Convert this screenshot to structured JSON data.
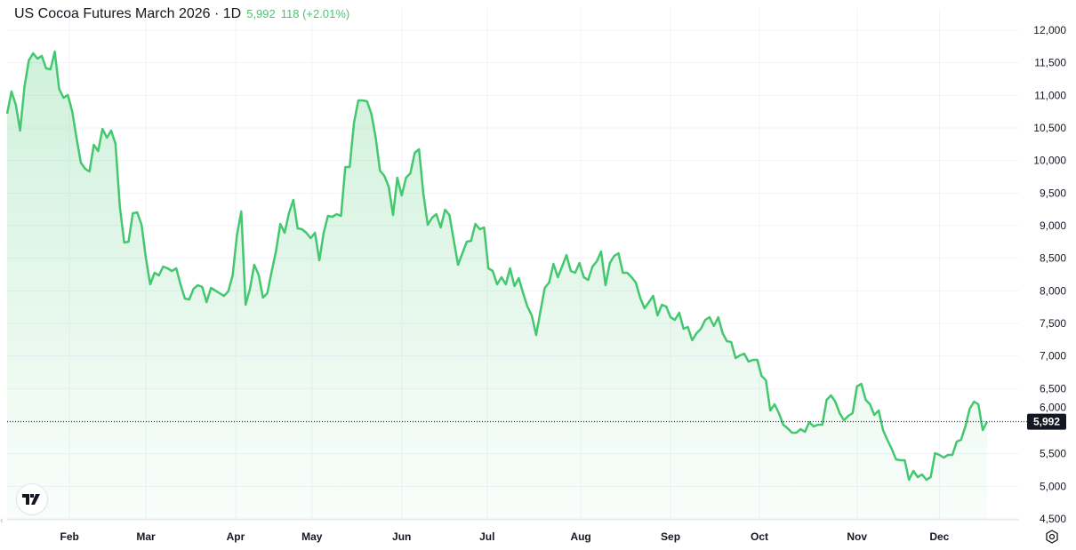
{
  "header": {
    "title": "US Cocoa Futures March 2026 · 1D",
    "last_price": "5,992",
    "change": "118 (+2.01%)"
  },
  "colors": {
    "line": "#43c86f",
    "price_label_bg": "#131722",
    "grid": "#f0f3fa"
  },
  "icons": {
    "logo": "tradingview-logo-icon",
    "settings": "settings-gear-icon",
    "scroll_back": "chevron-left-icon"
  },
  "chart_data": {
    "type": "area",
    "title": "US Cocoa Futures March 2026 · 1D",
    "xlabel": "",
    "ylabel": "",
    "ylim": [
      4500,
      12000
    ],
    "grid": true,
    "last_value": 5992,
    "last_value_label": "5,992",
    "y_ticks": [
      {
        "value": 12000,
        "label": "12,000"
      },
      {
        "value": 11500,
        "label": "11,500"
      },
      {
        "value": 11000,
        "label": "11,000"
      },
      {
        "value": 10500,
        "label": "10,500"
      },
      {
        "value": 10000,
        "label": "10,000"
      },
      {
        "value": 9500,
        "label": "9,500"
      },
      {
        "value": 9000,
        "label": "9,000"
      },
      {
        "value": 8500,
        "label": "8,500"
      },
      {
        "value": 8000,
        "label": "8,000"
      },
      {
        "value": 7500,
        "label": "7,500"
      },
      {
        "value": 7000,
        "label": "7,000"
      },
      {
        "value": 6500,
        "label": "6,500"
      },
      {
        "value": 6000,
        "label": "6,000"
      },
      {
        "value": 5500,
        "label": "5,500"
      },
      {
        "value": 5000,
        "label": "5,000"
      },
      {
        "value": 4500,
        "label": "4,500"
      }
    ],
    "x_ticks": [
      {
        "index": 14.4,
        "label": "Feb"
      },
      {
        "index": 32,
        "label": "Mar"
      },
      {
        "index": 52.7,
        "label": "Apr"
      },
      {
        "index": 70.3,
        "label": "May"
      },
      {
        "index": 91,
        "label": "Jun"
      },
      {
        "index": 110.7,
        "label": "Jul"
      },
      {
        "index": 132.3,
        "label": "Aug"
      },
      {
        "index": 153,
        "label": "Sep"
      },
      {
        "index": 173.5,
        "label": "Oct"
      },
      {
        "index": 196,
        "label": "Nov"
      },
      {
        "index": 215,
        "label": "Dec"
      }
    ],
    "values": [
      10718,
      11059,
      10855,
      10459,
      11127,
      11536,
      11645,
      11563,
      11604,
      11414,
      11400,
      11673,
      11100,
      10964,
      11005,
      10759,
      10350,
      9968,
      9873,
      9832,
      10241,
      10145,
      10486,
      10350,
      10459,
      10254,
      9286,
      8741,
      8755,
      9191,
      9205,
      9014,
      8509,
      8100,
      8277,
      8236,
      8373,
      8345,
      8304,
      8345,
      8100,
      7882,
      7868,
      8032,
      8086,
      8059,
      7827,
      8045,
      8004,
      7964,
      7923,
      7991,
      8236,
      8850,
      9218,
      7786,
      8032,
      8400,
      8250,
      7896,
      7964,
      8291,
      8605,
      9027,
      8891,
      9191,
      9395,
      8959,
      8946,
      8891,
      8809,
      8891,
      8468,
      8891,
      9150,
      9136,
      9177,
      9150,
      9900,
      9900,
      10582,
      10923,
      10923,
      10909,
      10718,
      10350,
      9845,
      9764,
      9600,
      9163,
      9736,
      9464,
      9736,
      9805,
      10118,
      10173,
      9491,
      9014,
      9123,
      9177,
      8973,
      9245,
      9163,
      8782,
      8400,
      8577,
      8755,
      8768,
      9027,
      8946,
      8973,
      8345,
      8304,
      8100,
      8209,
      8100,
      8345,
      8073,
      8195,
      7964,
      7759,
      7623,
      7323,
      7691,
      8045,
      8127,
      8414,
      8209,
      8373,
      8550,
      8304,
      8277,
      8427,
      8209,
      8168,
      8373,
      8455,
      8605,
      8086,
      8427,
      8536,
      8577,
      8277,
      8277,
      8209,
      8127,
      7896,
      7732,
      7827,
      7923,
      7623,
      7786,
      7759,
      7596,
      7555,
      7664,
      7418,
      7445,
      7241,
      7350,
      7418,
      7555,
      7596,
      7459,
      7596,
      7350,
      7227,
      7214,
      6968,
      7009,
      7036,
      6914,
      6941,
      6941,
      6695,
      6627,
      6164,
      6259,
      6123,
      5945,
      5891,
      5823,
      5823,
      5877,
      5836,
      5986,
      5918,
      5945,
      5945,
      6327,
      6395,
      6300,
      6123,
      6014,
      6082,
      6123,
      6532,
      6573,
      6327,
      6259,
      6095,
      6164,
      5864,
      5714,
      5577,
      5414,
      5400,
      5400,
      5100,
      5236,
      5141,
      5182,
      5100,
      5141,
      5509,
      5482,
      5441,
      5482,
      5482,
      5686,
      5714,
      5918,
      6191,
      6300,
      6259,
      5864,
      5992
    ]
  }
}
